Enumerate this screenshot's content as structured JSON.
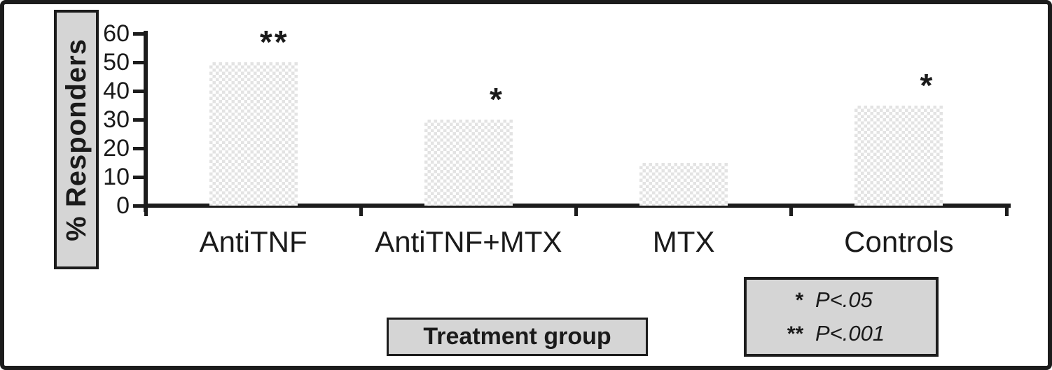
{
  "chart_data": {
    "type": "bar",
    "title": "",
    "ylabel": "% Responders",
    "xlabel": "Treatment group",
    "categories": [
      "AntiTNF",
      "AntiTNF+MTX",
      "MTX",
      "Controls"
    ],
    "values": [
      50,
      30,
      15,
      35
    ],
    "annotations": [
      "**",
      "*",
      "",
      "*"
    ],
    "yticks": [
      0,
      10,
      20,
      30,
      40,
      50,
      60
    ],
    "ylim": [
      0,
      60
    ],
    "grid": false,
    "legend_position": "bottom-right",
    "legend": [
      {
        "symbol": "*",
        "label": "P<.05"
      },
      {
        "symbol": "**",
        "label": "P<.001"
      }
    ],
    "colors": {
      "bar_pattern_gray": "#e3e3e3",
      "box_fill": "#d5d5d5",
      "axis_and_border": "#1c1c1c"
    }
  }
}
